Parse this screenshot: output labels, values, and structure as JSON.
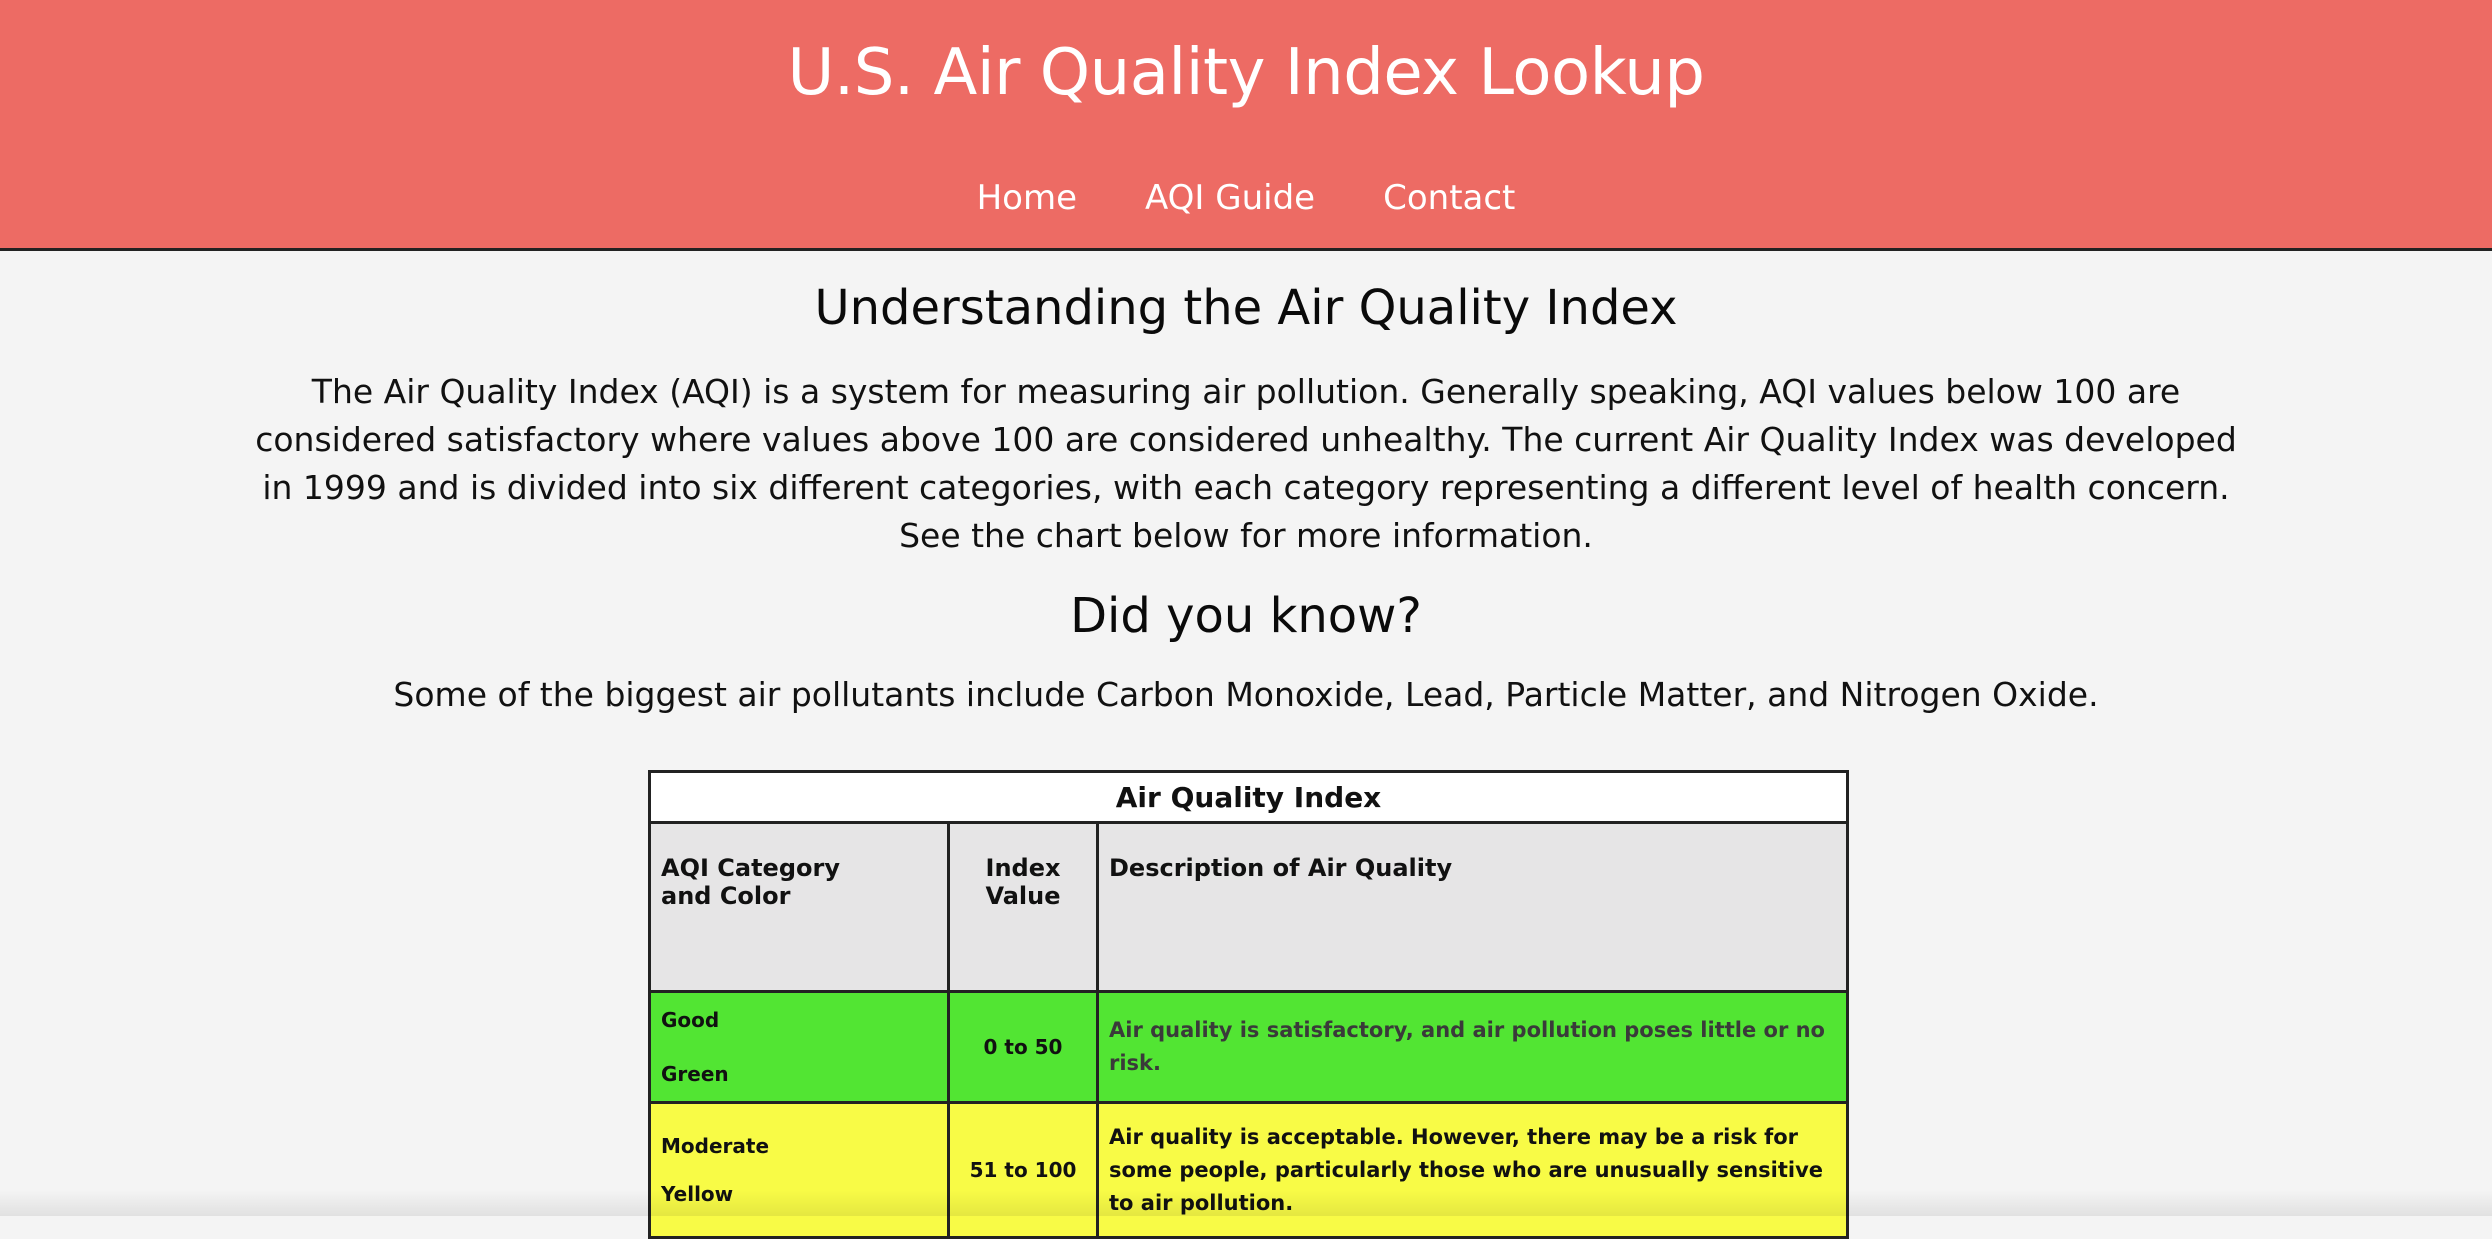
{
  "header": {
    "title": "U.S. Air Quality Index Lookup",
    "nav": [
      "Home",
      "AQI Guide",
      "Contact"
    ]
  },
  "main": {
    "heading": "Understanding the Air Quality Index",
    "intro": "The Air Quality Index (AQI) is a system for measuring air pollution. Generally speaking, AQI values below 100 are considered satisfactory where values above 100 are considered unhealthy. The current Air Quality Index was developed in 1999 and is divided into six different categories, with each category representing a different level of health concern. See the chart below for more information.",
    "did_you_know_heading": "Did you know?",
    "did_you_know_text": "Some of the biggest air pollutants include Carbon Monoxide, Lead, Particle Matter, and Nitrogen Oxide."
  },
  "aqi_table": {
    "caption": "Air Quality Index",
    "headers": {
      "category": "AQI Category and Color",
      "index": "Index Value",
      "description": "Description of Air Quality"
    },
    "rows": [
      {
        "category": "Good",
        "color_name": "Green",
        "index": "0 to 50",
        "description": "Air quality is satisfactory, and air pollution poses little or no risk.",
        "bg": "#52e533"
      },
      {
        "category": "Moderate",
        "color_name": "Yellow",
        "index": "51 to 100",
        "description": "Air quality is acceptable. However, there may be a risk for some people, particularly those who are unusually sensitive to air pollution.",
        "bg": "#f8fb46"
      }
    ]
  },
  "colors": {
    "header_bg": "#ed6b64",
    "page_bg": "#f4f4f4"
  }
}
